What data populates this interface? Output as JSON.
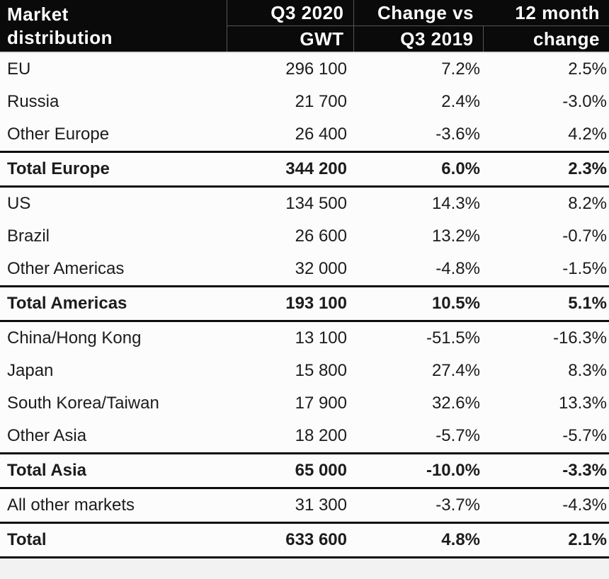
{
  "header": {
    "col1_line1": "Market",
    "col1_line2": "distribution",
    "col2_line1": "Q3 2020",
    "col2_line2": "GWT",
    "col3_line1": "Change vs",
    "col3_line2": "Q3 2019",
    "col4_line1": "12 month",
    "col4_line2": "change"
  },
  "rows": [
    {
      "market": "EU",
      "gwt": "296 100",
      "change_vs_q3_2019": "7.2%",
      "twelve_month_change": "2.5%",
      "is_total": false
    },
    {
      "market": "Russia",
      "gwt": "21 700",
      "change_vs_q3_2019": "2.4%",
      "twelve_month_change": "-3.0%",
      "is_total": false
    },
    {
      "market": "Other Europe",
      "gwt": "26 400",
      "change_vs_q3_2019": "-3.6%",
      "twelve_month_change": "4.2%",
      "is_total": false
    },
    {
      "market": "Total Europe",
      "gwt": "344 200",
      "change_vs_q3_2019": "6.0%",
      "twelve_month_change": "2.3%",
      "is_total": true
    },
    {
      "market": "US",
      "gwt": "134 500",
      "change_vs_q3_2019": "14.3%",
      "twelve_month_change": "8.2%",
      "is_total": false
    },
    {
      "market": "Brazil",
      "gwt": "26 600",
      "change_vs_q3_2019": "13.2%",
      "twelve_month_change": "-0.7%",
      "is_total": false
    },
    {
      "market": "Other Americas",
      "gwt": "32 000",
      "change_vs_q3_2019": "-4.8%",
      "twelve_month_change": "-1.5%",
      "is_total": false
    },
    {
      "market": "Total Americas",
      "gwt": "193 100",
      "change_vs_q3_2019": "10.5%",
      "twelve_month_change": "5.1%",
      "is_total": true
    },
    {
      "market": "China/Hong Kong",
      "gwt": "13 100",
      "change_vs_q3_2019": "-51.5%",
      "twelve_month_change": "-16.3%",
      "is_total": false
    },
    {
      "market": "Japan",
      "gwt": "15 800",
      "change_vs_q3_2019": "27.4%",
      "twelve_month_change": "8.3%",
      "is_total": false
    },
    {
      "market": "South Korea/Taiwan",
      "gwt": "17 900",
      "change_vs_q3_2019": "32.6%",
      "twelve_month_change": "13.3%",
      "is_total": false
    },
    {
      "market": "Other Asia",
      "gwt": "18 200",
      "change_vs_q3_2019": "-5.7%",
      "twelve_month_change": "-5.7%",
      "is_total": false
    },
    {
      "market": "Total Asia",
      "gwt": "65 000",
      "change_vs_q3_2019": "-10.0%",
      "twelve_month_change": "-3.3%",
      "is_total": true
    },
    {
      "market": "All other markets",
      "gwt": "31 300",
      "change_vs_q3_2019": "-3.7%",
      "twelve_month_change": "-4.3%",
      "is_total": false
    },
    {
      "market": "Total",
      "gwt": "633 600",
      "change_vs_q3_2019": "4.8%",
      "twelve_month_change": "2.1%",
      "is_total": true
    }
  ],
  "colors": {
    "header_bg": "#0a0a0a",
    "header_text": "#ffffff",
    "header_divider": "#555555",
    "body_text": "#1c1c1c",
    "thick_line": "#0d0d0d",
    "row_bg": "#fcfcfc",
    "page_bg": "#f2f2f2"
  },
  "chart_data": {
    "type": "table",
    "title": "Market distribution",
    "columns": [
      "Market distribution",
      "Q3 2020 GWT",
      "Change vs Q3 2019 (%)",
      "12 month change (%)"
    ],
    "rows": [
      [
        "EU",
        296100,
        7.2,
        2.5
      ],
      [
        "Russia",
        21700,
        2.4,
        -3.0
      ],
      [
        "Other Europe",
        26400,
        -3.6,
        4.2
      ],
      [
        "Total Europe",
        344200,
        6.0,
        2.3
      ],
      [
        "US",
        134500,
        14.3,
        8.2
      ],
      [
        "Brazil",
        26600,
        13.2,
        -0.7
      ],
      [
        "Other Americas",
        32000,
        -4.8,
        -1.5
      ],
      [
        "Total Americas",
        193100,
        10.5,
        5.1
      ],
      [
        "China/Hong Kong",
        13100,
        -51.5,
        -16.3
      ],
      [
        "Japan",
        15800,
        27.4,
        8.3
      ],
      [
        "South Korea/Taiwan",
        17900,
        32.6,
        13.3
      ],
      [
        "Other Asia",
        18200,
        -5.7,
        -5.7
      ],
      [
        "Total Asia",
        65000,
        -10.0,
        -3.3
      ],
      [
        "All other markets",
        31300,
        -3.7,
        -4.3
      ],
      [
        "Total",
        633600,
        4.8,
        2.1
      ]
    ],
    "total_rows": [
      "Total Europe",
      "Total Americas",
      "Total Asia",
      "Total"
    ],
    "layout_hints": {
      "header_background": "black",
      "numeric_columns_right_aligned": true,
      "total_rows_bold_with_thick_rules": true
    }
  }
}
